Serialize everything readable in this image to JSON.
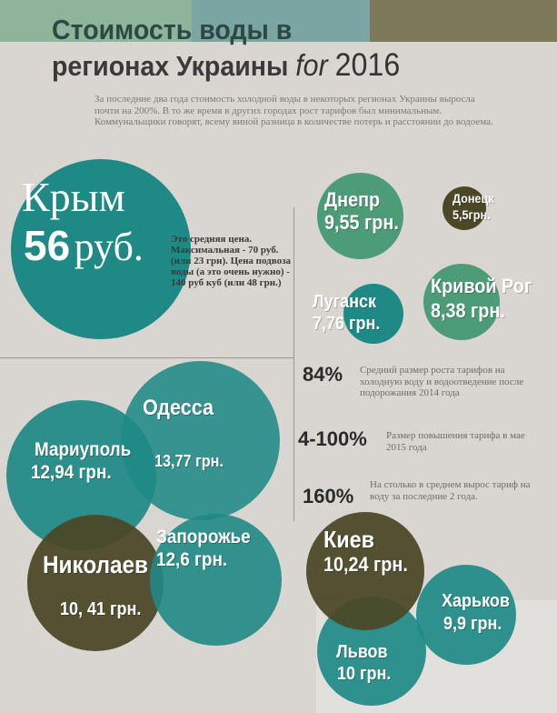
{
  "colors": {
    "teal": "#1f8a85",
    "green": "#4c9c78",
    "olive": "#4a4827",
    "bar_green": "#8fb49c",
    "bar_teal": "#7aa5a3",
    "bar_olive": "#7d7a5c",
    "background": "#d9d6d1"
  },
  "title": {
    "line1": "Стоимость воды в",
    "line2": "регионах Украины",
    "for": "for",
    "year": "2016"
  },
  "intro": "За последние два года стоимость холодной воды в некоторых регионах Украины выросла почти на 200%. В то же время в других городах рост тарифов был минимальным. Коммунальщики говорят, всему виной разница в количестве потерь и расстоянии до водоема.",
  "krym": {
    "name": "Крым",
    "price_num": "56",
    "price_unit": "руб.",
    "note": "Это средняя цена. Максимальная - 70 руб. (или 23 грн). Цена подвоза воды (а это очень нужно) - 140 руб куб (или 48 грн.)"
  },
  "cities": {
    "dnepr": {
      "name": "Днепр",
      "price": "9,55 грн."
    },
    "donetsk": {
      "name": "Донецк",
      "price": "5,5грн."
    },
    "lugansk": {
      "name": "Луганск",
      "price": "7,76 грн."
    },
    "krivoy_rog": {
      "name": "Кривой Рог",
      "price": "8,38 грн."
    },
    "odessa": {
      "name": "Одесса",
      "price": "13,77 грн."
    },
    "mariupol": {
      "name": "Мариуполь",
      "price": "12,94 грн."
    },
    "zaporozhye": {
      "name": "Запорожье",
      "price": "12,6 грн."
    },
    "nikolaev": {
      "name": "Николаев",
      "price": "10, 41 грн."
    },
    "kiev": {
      "name": "Киев",
      "price": "10,24 грн."
    },
    "kharkov": {
      "name": "Харьков",
      "price": "9,9 грн."
    },
    "lvov": {
      "name": "Львов",
      "price": "10 грн."
    }
  },
  "stats": [
    {
      "value": "84%",
      "text": "Средний размер роста тарифов на холодную воду и водоотведение после подорожания 2014 года"
    },
    {
      "value": "4-100%",
      "text": "Размер повышения тарифа в мае 2015 года"
    },
    {
      "value": "160%",
      "text": "На столько в среднем вырос тариф на воду за последние 2 года."
    }
  ]
}
